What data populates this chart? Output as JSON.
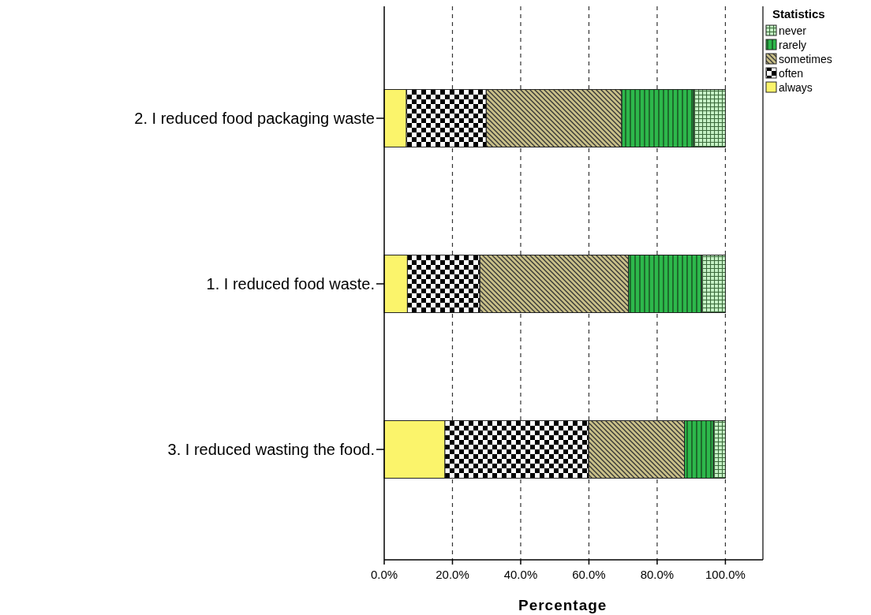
{
  "chart_data": {
    "type": "bar",
    "orientation": "horizontal",
    "stacked": true,
    "xlabel": "Percentage",
    "legend_title": "Statistics",
    "legend": "top right",
    "grid": "x",
    "categories": [
      "2. I reduced food packaging waste",
      "1. I reduced food waste.",
      "3. I reduced wasting the food."
    ],
    "series": [
      {
        "name": "always",
        "color": "#fbf46b",
        "values": [
          6.5,
          6.8,
          17.8
        ]
      },
      {
        "name": "often",
        "color": "#000000",
        "values": [
          23.4,
          21.2,
          42.1
        ]
      },
      {
        "name": "sometimes",
        "color": "#c8bf88",
        "values": [
          39.7,
          43.6,
          28.1
        ]
      },
      {
        "name": "rarely",
        "color": "#2db84b",
        "values": [
          21.1,
          21.4,
          8.5
        ]
      },
      {
        "name": "never",
        "color": "#c6f2c6",
        "values": [
          9.3,
          7.0,
          3.5
        ]
      }
    ],
    "xlim": [
      0,
      111
    ],
    "xticks": [
      {
        "value": 0,
        "label": "0.0%"
      },
      {
        "value": 20,
        "label": "20.0%"
      },
      {
        "value": 40,
        "label": "40.0%"
      },
      {
        "value": 60,
        "label": "60.0%"
      },
      {
        "value": 80,
        "label": "80.0%"
      },
      {
        "value": 100,
        "label": "100.0%"
      }
    ]
  }
}
